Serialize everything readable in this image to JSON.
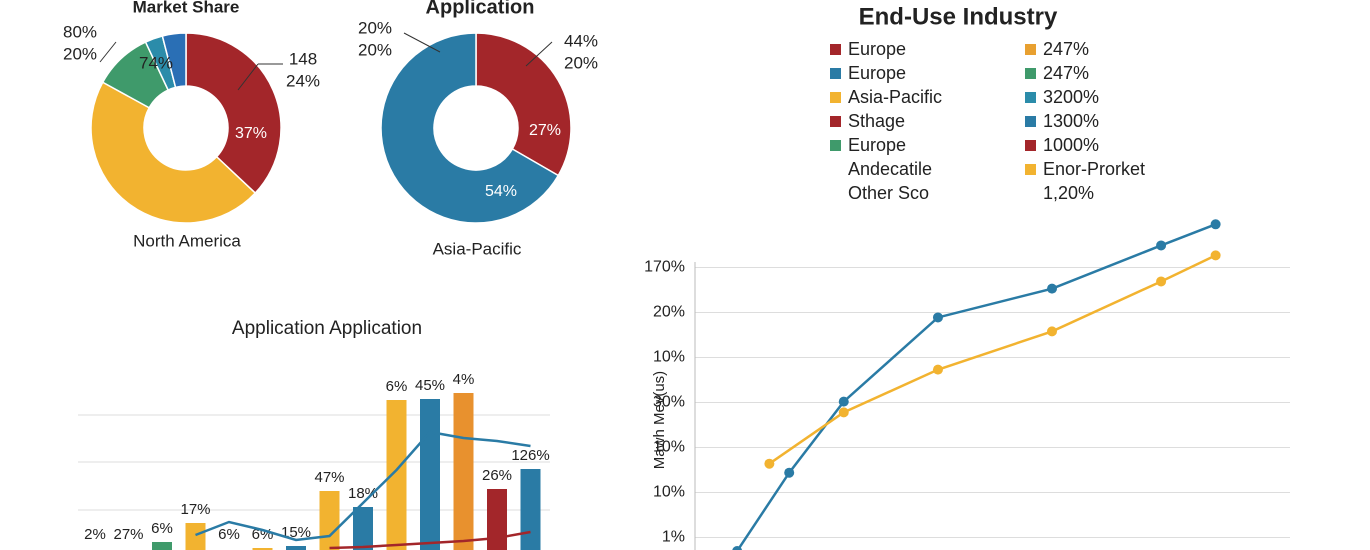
{
  "chart_data": [
    {
      "type": "pie",
      "title": "Market Share",
      "values": [
        37,
        46,
        10,
        3,
        4
      ],
      "value_labels": [
        "37%",
        null,
        null,
        null,
        null
      ],
      "colors": [
        "#a3262a",
        "#f2b330",
        "#3f9a6b",
        "#2b8caa",
        "#2a6fb5"
      ],
      "annotations": [
        "80%",
        "20%",
        "74%",
        "148",
        "24%",
        "North America"
      ]
    },
    {
      "type": "pie",
      "title": "Application",
      "values": [
        27,
        54
      ],
      "value_labels": [
        "27%",
        "54%"
      ],
      "colors": [
        "#a3262a",
        "#2a7ba5"
      ],
      "annotations": [
        "20%",
        "20%",
        "44%",
        "20%",
        "Asia-Pacific"
      ]
    },
    {
      "type": "bar",
      "title": "Application Application",
      "categories": [
        null,
        null,
        null,
        null,
        null,
        null,
        null,
        null,
        null,
        null,
        null,
        null,
        null,
        null
      ],
      "values": [
        null,
        null,
        9,
        18.5,
        null,
        6,
        7,
        34.5,
        26.5,
        80,
        80.5,
        83.5,
        35.5,
        45.5
      ],
      "colors": [
        "#3f9a6b",
        "#3f9a6b",
        "#3f9a6b",
        "#f2b330",
        "#f2b330",
        "#f2b330",
        "#2a7ba5",
        "#f2b330",
        "#2a7ba5",
        "#f2b330",
        "#2a7ba5",
        "#e8912e",
        "#a3262a",
        "#2a7ba5"
      ],
      "annotations": [
        "2%",
        "27%",
        "6%",
        "17%",
        "6%",
        "6%",
        "15%",
        "47%",
        "18%",
        "6%",
        "45%",
        "4%",
        "26%",
        "126%"
      ],
      "lines": [
        {
          "color": "#2a7ba5",
          "values": [
            null,
            null,
            null,
            12.5,
            19,
            15,
            10,
            12,
            28.5,
            45,
            64,
            61,
            59.5,
            57
          ]
        },
        {
          "color": "#a3262a",
          "values": [
            null,
            null,
            null,
            null,
            null,
            null,
            null,
            6,
            6.5,
            7.5,
            8.5,
            9.5,
            11,
            14
          ]
        }
      ],
      "ylim": [
        0,
        100
      ],
      "yticks": [
        25,
        49,
        72.5
      ],
      "grid": true
    },
    {
      "type": "line",
      "title": "End-Use Industry",
      "ylabel": "Mawh Mev(us)",
      "legend_items": [
        {
          "label": "Europe",
          "color": "#a3262a"
        },
        {
          "label": "Europe",
          "color": "#2a7ba5"
        },
        {
          "label": "Asia-Pacific",
          "color": "#f2b330"
        },
        {
          "label": "Sthage",
          "color": "#a3262a"
        },
        {
          "label": "Europe",
          "color": "#3f9a6b"
        },
        {
          "label": "Andecatile"
        },
        {
          "label": "Other Sco"
        },
        {
          "label": "247%",
          "color": "#e8a030"
        },
        {
          "label": "247%",
          "color": "#3f9a6b"
        },
        {
          "label": "3200%",
          "color": "#2b8caa"
        },
        {
          "label": "1300%",
          "color": "#2a7ba5"
        },
        {
          "label": "1000%",
          "color": "#a3262a"
        },
        {
          "label": "Enor-Prorket",
          "color": "#f2b330"
        },
        {
          "label": "1,20%"
        }
      ],
      "series": [
        {
          "color": "#2a7ba5",
          "x": [
            0.85,
            1.9,
            3,
            4.9,
            7.2,
            9.4,
            10.5
          ],
          "values": [
            -0.3,
            1.44,
            3.02,
            4.89,
            5.53,
            6.49,
            6.96
          ]
        },
        {
          "color": "#f2b330",
          "x": [
            1.5,
            3,
            4.9,
            7.2,
            9.4,
            10.5
          ],
          "values": [
            1.64,
            2.78,
            3.73,
            4.58,
            5.69,
            6.27
          ]
        }
      ],
      "xlim": [
        0,
        12
      ],
      "ylim": [
        -0.3,
        7.3
      ],
      "yticks": [
        {
          "value": 6,
          "label": "170%"
        },
        {
          "value": 5,
          "label": "20%"
        },
        {
          "value": 4,
          "label": "10%"
        },
        {
          "value": 3,
          "label": "30%"
        },
        {
          "value": 2,
          "label": "10%"
        },
        {
          "value": 1,
          "label": "10%"
        },
        {
          "value": 0,
          "label": "1%"
        }
      ],
      "grid": true
    }
  ]
}
